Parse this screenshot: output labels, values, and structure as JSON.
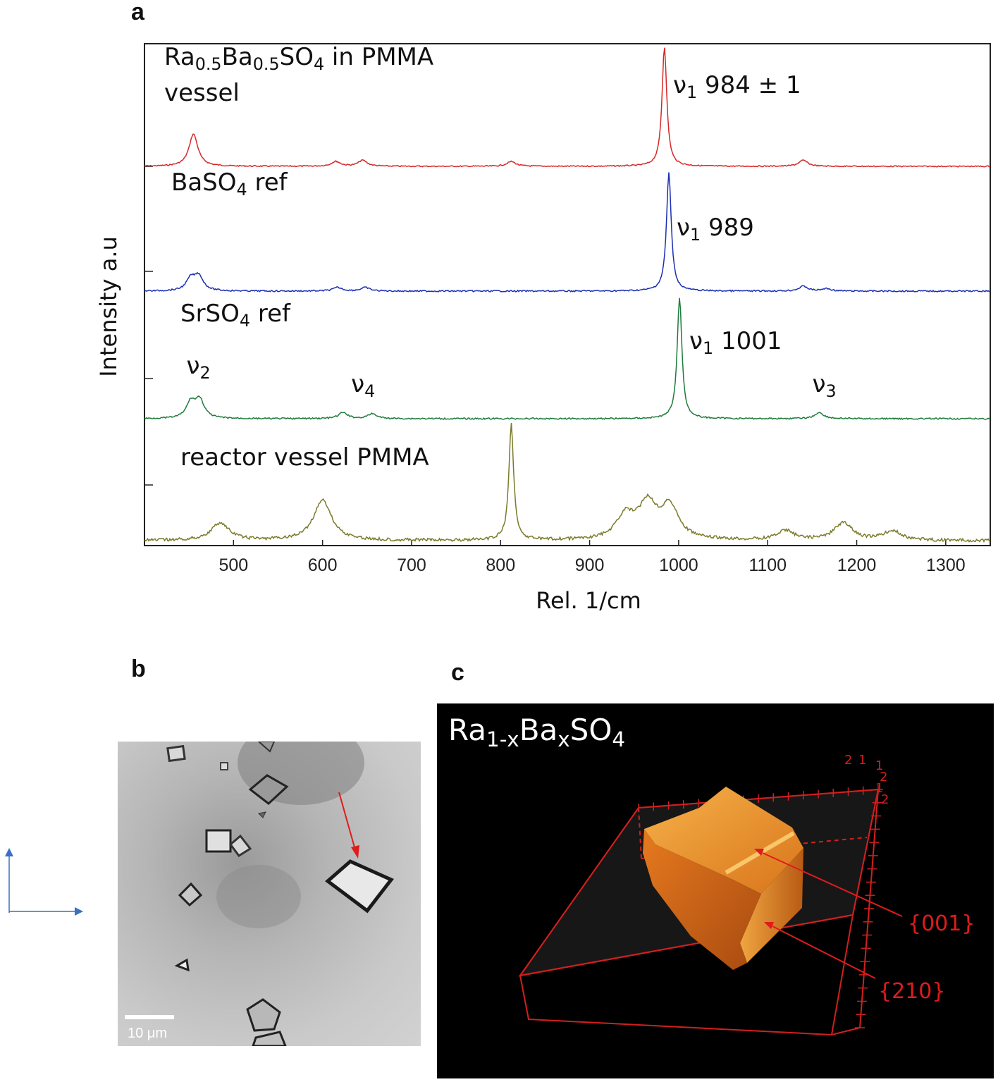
{
  "panels": {
    "a": "a",
    "b": "b",
    "c": "c"
  },
  "chart_data": {
    "type": "line",
    "xlabel": "Rel. 1/cm",
    "ylabel": "Intensity a.u",
    "xlim": [
      400,
      1350
    ],
    "xticks": [
      500,
      600,
      700,
      800,
      900,
      1000,
      1100,
      1200,
      1300
    ],
    "series": [
      {
        "name": "Ra0.5Ba0.5SO4 in PMMA vessel",
        "color": "#d62728",
        "label_parts": [
          [
            "Ra",
            ""
          ],
          [
            "0.5",
            "sub"
          ],
          [
            "Ba",
            ""
          ],
          [
            "0.5",
            "sub"
          ],
          [
            "SO",
            ""
          ],
          [
            "4",
            "sub"
          ],
          [
            " in PMMA",
            ""
          ]
        ],
        "label_line2": "vessel",
        "annotation_parts": [
          [
            "ν",
            ""
          ],
          [
            "1",
            "sub"
          ],
          [
            " 984 ± 1",
            ""
          ]
        ],
        "peaks": [
          {
            "x": 455,
            "height": 0.27
          },
          {
            "x": 615,
            "height": 0.04
          },
          {
            "x": 645,
            "height": 0.05
          },
          {
            "x": 812,
            "height": 0.04
          },
          {
            "x": 984,
            "height": 1.0
          },
          {
            "x": 1140,
            "height": 0.05
          }
        ]
      },
      {
        "name": "BaSO4 ref",
        "color": "#1a2fb3",
        "label_parts": [
          [
            "BaSO",
            ""
          ],
          [
            "4",
            "sub"
          ],
          [
            " ref",
            ""
          ]
        ],
        "annotation_parts": [
          [
            "ν",
            ""
          ],
          [
            "1",
            "sub"
          ],
          [
            " 989",
            ""
          ]
        ],
        "peaks": [
          {
            "x": 452,
            "height": 0.1
          },
          {
            "x": 461,
            "height": 0.12
          },
          {
            "x": 617,
            "height": 0.03
          },
          {
            "x": 648,
            "height": 0.03
          },
          {
            "x": 989,
            "height": 1.0
          },
          {
            "x": 1140,
            "height": 0.04
          },
          {
            "x": 1166,
            "height": 0.02
          }
        ]
      },
      {
        "name": "SrSO4 ref",
        "color": "#1e7b3c",
        "label_parts": [
          [
            "SrSO",
            ""
          ],
          [
            "4",
            "sub"
          ],
          [
            " ref",
            ""
          ]
        ],
        "annotation_parts": [
          [
            "ν",
            ""
          ],
          [
            "1",
            "sub"
          ],
          [
            " 1001",
            ""
          ]
        ],
        "peaks": [
          {
            "x": 452,
            "height": 0.13
          },
          {
            "x": 462,
            "height": 0.15
          },
          {
            "x": 623,
            "height": 0.05
          },
          {
            "x": 656,
            "height": 0.04
          },
          {
            "x": 1001,
            "height": 1.0
          },
          {
            "x": 1158,
            "height": 0.05
          }
        ]
      },
      {
        "name": "reactor vessel PMMA",
        "color": "#7a7a2a",
        "label_parts": [
          [
            "reactor vessel PMMA",
            ""
          ]
        ],
        "peaks": [
          {
            "x": 485,
            "height": 0.15
          },
          {
            "x": 600,
            "height": 0.35
          },
          {
            "x": 812,
            "height": 1.0
          },
          {
            "x": 940,
            "height": 0.2
          },
          {
            "x": 965,
            "height": 0.3
          },
          {
            "x": 990,
            "height": 0.28
          },
          {
            "x": 1120,
            "height": 0.08
          },
          {
            "x": 1185,
            "height": 0.15
          },
          {
            "x": 1240,
            "height": 0.08
          }
        ]
      }
    ],
    "band_labels": [
      {
        "parts": [
          [
            "ν",
            ""
          ],
          [
            "2",
            "sub"
          ]
        ],
        "x": 455
      },
      {
        "parts": [
          [
            "ν",
            ""
          ],
          [
            "4",
            "sub"
          ]
        ],
        "x": 640
      },
      {
        "parts": [
          [
            "ν",
            ""
          ],
          [
            "3",
            "sub"
          ]
        ],
        "x": 1158
      }
    ]
  },
  "micrograph": {
    "scale_bar": "10 μm"
  },
  "render3d": {
    "formula_parts": [
      [
        "Ra",
        ""
      ],
      [
        "1-x",
        "sub"
      ],
      [
        "Ba",
        ""
      ],
      [
        "x",
        "sub"
      ],
      [
        "SO",
        ""
      ],
      [
        "4",
        "sub"
      ]
    ],
    "facets": [
      "{001}",
      "{210}"
    ],
    "axis_marks": [
      "2",
      "1",
      "1",
      "2",
      "1",
      "2"
    ]
  },
  "colors": {
    "arrow_red": "#e01b1b",
    "axis_blue": "#3a6fc4"
  }
}
